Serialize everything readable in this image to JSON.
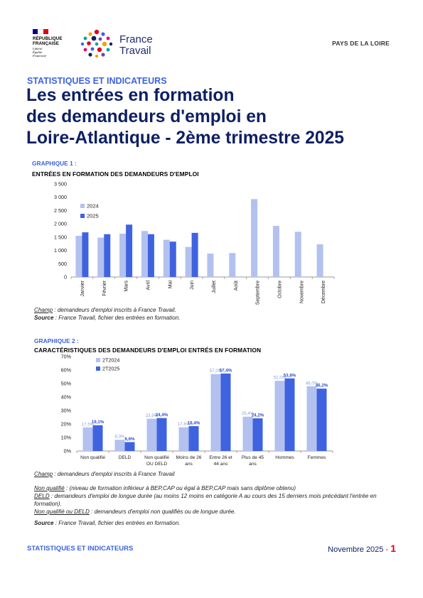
{
  "header": {
    "rf": {
      "line1": "RÉPUBLIQUE",
      "line2": "FRANÇAISE",
      "motto1": "Liberté",
      "motto2": "Égalité",
      "motto3": "Fraternité"
    },
    "brand": {
      "line1": "France",
      "line2": "Travail"
    },
    "region": "PAYS DE LA LOIRE"
  },
  "kicker": "STATISTIQUES ET INDICATEURS",
  "title": {
    "line1": "Les entrées en formation",
    "line2": "des demandeurs d'emploi en",
    "line3": "Loire-Atlantique - 2ème trimestre 2025"
  },
  "graph1": {
    "kicker": "GRAPHIQUE 1 :",
    "title": "ENTRÉES EN FORMATION DES DEMANDEURS D'EMPLOI",
    "note_champ_label": "Champ",
    "note_champ_text": " : demandeurs d'emploi inscrits à France Travail.",
    "note_source_label": "Source",
    "note_source_text": " : France Travail, fichier des entrées en formation."
  },
  "graph2": {
    "kicker": "GRAPHIQUE 2 :",
    "title": "CARACTÉRISTIQUES DES DEMANDEURS D'EMPLOI ENTRÉS EN FORMATION",
    "note_champ_label": "Champ",
    "note_champ_text": " : demandeurs d'emploi inscrits à France Travail",
    "def1_label": "Non qualifié",
    "def1_text": " : (niveau de formation inférieur à BEP,CAP ou égal à BEP,CAP mais sans diplôme obtenu)",
    "def2_label": "DELD",
    "def2_text": " : demandeurs d'emploi de longue durée (au moins 12 moins en catégorie A au cours des 15 derniers mois précédant l'entrée en formation).",
    "def3_label": "Non qualifié ou DELD",
    "def3_text": " : demandeurs d'emploi non qualifiés ou de longue durée.",
    "source_label": "Source",
    "source_text": " : France Travail, fichier des entrées en formation."
  },
  "footer": {
    "left": "STATISTIQUES ET INDICATEURS",
    "date": "Novembre 2025",
    "sep": " - ",
    "page": "1"
  },
  "colors": {
    "light": "#b3c1ef",
    "dark": "#3f63e0",
    "accent": "#3b63e0",
    "navy": "#0d1f63"
  },
  "chart_data": [
    {
      "type": "bar",
      "title": "ENTRÉES EN FORMATION DES DEMANDEURS D'EMPLOI",
      "categories": [
        "Janvier",
        "Février",
        "Mars",
        "Avril",
        "Mai",
        "Juin",
        "Juillet",
        "Août",
        "Septembre",
        "Octobre",
        "Novembre",
        "Décembre"
      ],
      "series": [
        {
          "name": "2024",
          "color": "#b3c1ef",
          "values": [
            1550,
            1480,
            1630,
            1730,
            1400,
            1130,
            880,
            900,
            2930,
            1920,
            1700,
            1230
          ]
        },
        {
          "name": "2025",
          "color": "#3f63e0",
          "values": [
            1680,
            1610,
            1970,
            1610,
            1330,
            1660,
            null,
            null,
            null,
            null,
            null,
            null
          ]
        }
      ],
      "yticks": [
        "0",
        "500",
        "1 000",
        "1 500",
        "2 000",
        "2 500",
        "3 000",
        "3 500"
      ],
      "ylim": [
        0,
        3500
      ],
      "legend": "top-left",
      "grid": false
    },
    {
      "type": "bar",
      "title": "CARACTÉRISTIQUES DES DEMANDEURS D'EMPLOI ENTRÉS EN FORMATION",
      "categories": [
        [
          "Non qualifié"
        ],
        [
          "DELD"
        ],
        [
          "Non qualifié",
          "OU DELD"
        ],
        [
          "Moins de 26",
          "ans"
        ],
        [
          "Entre 26 et",
          "44 ans"
        ],
        [
          "Plus de 45",
          "ans"
        ],
        [
          "Hommes"
        ],
        [
          "Femmes"
        ]
      ],
      "series": [
        {
          "name": "2T2024",
          "color": "#b3c1ef",
          "values": [
            17.5,
            8.3,
            23.9,
            17.6,
            57.0,
            25.4,
            52.0,
            48.0
          ],
          "labels": [
            "17,5%",
            "8,3%",
            "23,9%",
            "17,6%",
            "57,0%",
            "25,4%",
            "52,0%",
            "48,0%"
          ]
        },
        {
          "name": "2T2025",
          "color": "#3f63e0",
          "values": [
            19.1,
            6.6,
            24.4,
            18.4,
            57.4,
            24.2,
            53.8,
            46.2
          ],
          "labels": [
            "19,1%",
            "6,6%",
            "24,4%",
            "18,4%",
            "57,4%",
            "24,2%",
            "53,8%",
            "46,2%"
          ]
        }
      ],
      "yticks": [
        "0%",
        "10%",
        "20%",
        "30%",
        "40%",
        "50%",
        "60%",
        "70%"
      ],
      "ylim": [
        0,
        70
      ],
      "legend": "top-left",
      "grid": false
    }
  ]
}
